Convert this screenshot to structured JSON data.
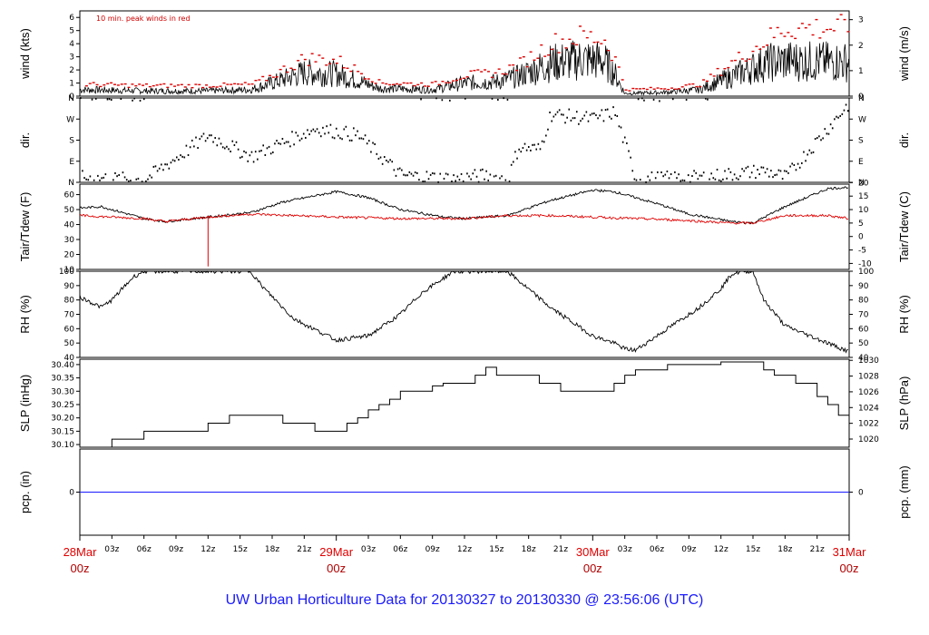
{
  "title": "UW Urban Horticulture Data for 20130327  to  20130330 @ 23:56:06  (UTC)",
  "note": "10 min. peak winds in red",
  "colors": {
    "main": "#000000",
    "peak": "#e00000",
    "dewpoint": "#e00000",
    "precip": "#1a1aff",
    "title": "#1a1aff",
    "date": "#e00000"
  },
  "x_axis": {
    "hour_ticks": [
      "03z",
      "06z",
      "09z",
      "12z",
      "15z",
      "18z",
      "21z",
      "03z",
      "06z",
      "09z",
      "12z",
      "15z",
      "18z",
      "21z",
      "03z",
      "06z",
      "09z",
      "12z",
      "15z",
      "18z",
      "21z"
    ],
    "date_labels": [
      {
        "day": "28Mar",
        "hour": "00z"
      },
      {
        "day": "29Mar",
        "hour": "00z"
      },
      {
        "day": "30Mar",
        "hour": "00z"
      },
      {
        "day": "31Mar",
        "hour": "00z"
      }
    ]
  },
  "chart_data": [
    {
      "type": "line",
      "id": "wind",
      "ylabel_left": "wind (kts)",
      "ylabel_right": "wind (m/s)",
      "ylim": [
        0,
        6.5
      ],
      "left_ticks": [
        "0",
        "1",
        "2",
        "3",
        "4",
        "5",
        "6"
      ],
      "right_ticks": [
        "0",
        "1",
        "2",
        "3"
      ],
      "x_unit": "hours since 28Mar 00z",
      "x_range": [
        0,
        72
      ],
      "series": [
        {
          "name": "wind",
          "color": "#000000",
          "profile": [
            [
              0,
              0.5
            ],
            [
              6,
              0.4
            ],
            [
              12,
              0.4
            ],
            [
              16,
              0.5
            ],
            [
              18,
              1.0
            ],
            [
              21,
              1.8
            ],
            [
              24,
              1.7
            ],
            [
              26,
              1.2
            ],
            [
              28,
              0.6
            ],
            [
              33,
              0.5
            ],
            [
              36,
              1.0
            ],
            [
              39,
              1.1
            ],
            [
              41,
              1.5
            ],
            [
              44,
              2.5
            ],
            [
              47,
              2.8
            ],
            [
              49,
              2.7
            ],
            [
              50,
              1.8
            ],
            [
              51,
              0.2
            ],
            [
              55,
              0.3
            ],
            [
              58,
              0.5
            ],
            [
              61,
              1.5
            ],
            [
              64,
              2.5
            ],
            [
              66,
              2.7
            ],
            [
              72,
              2.6
            ]
          ]
        },
        {
          "name": "10 min. peak winds",
          "color": "#e00000",
          "profile": [
            [
              0,
              0.9
            ],
            [
              6,
              0.8
            ],
            [
              12,
              0.8
            ],
            [
              16,
              0.9
            ],
            [
              18,
              1.6
            ],
            [
              21,
              2.9
            ],
            [
              24,
              2.7
            ],
            [
              26,
              1.9
            ],
            [
              28,
              1.0
            ],
            [
              33,
              0.9
            ],
            [
              36,
              1.6
            ],
            [
              39,
              1.8
            ],
            [
              41,
              2.4
            ],
            [
              44,
              4.0
            ],
            [
              47,
              4.6
            ],
            [
              49,
              4.3
            ],
            [
              50,
              2.8
            ],
            [
              51,
              0.5
            ],
            [
              55,
              0.6
            ],
            [
              58,
              0.9
            ],
            [
              61,
              2.6
            ],
            [
              64,
              4.2
            ],
            [
              66,
              5.2
            ],
            [
              72,
              5.2
            ]
          ]
        }
      ]
    },
    {
      "type": "scatter",
      "id": "dir",
      "ylabel_left": "dir.",
      "ylabel_right": "dir.",
      "ylim": [
        0,
        360
      ],
      "left_ticks": [
        "N",
        "E",
        "S",
        "W",
        "N"
      ],
      "right_ticks": [
        "N",
        "E",
        "S",
        "W",
        "N"
      ],
      "x_range": [
        0,
        72
      ],
      "series": [
        {
          "name": "direction",
          "color": "#000000",
          "profile": [
            [
              0,
              20
            ],
            [
              6,
              10
            ],
            [
              12,
              200
            ],
            [
              16,
              110
            ],
            [
              20,
              190
            ],
            [
              22,
              230
            ],
            [
              26,
              200
            ],
            [
              30,
              30
            ],
            [
              35,
              15
            ],
            [
              38,
              30
            ],
            [
              40,
              10
            ],
            [
              41,
              150
            ],
            [
              43,
              140
            ],
            [
              44,
              290
            ],
            [
              48,
              270
            ],
            [
              50,
              300
            ],
            [
              52,
              15
            ],
            [
              58,
              20
            ],
            [
              64,
              50
            ],
            [
              66,
              20
            ],
            [
              72,
              340
            ]
          ]
        }
      ]
    },
    {
      "type": "line",
      "id": "temp",
      "ylabel_left": "Tair/Tdew (F)",
      "ylabel_right": "Tair/Tdew (C)",
      "ylim": [
        10,
        67
      ],
      "left_ticks": [
        "10",
        "20",
        "30",
        "40",
        "50",
        "60"
      ],
      "right_ticks": [
        "-10",
        "-5",
        "0",
        "5",
        "10",
        "15",
        "20"
      ],
      "x_range": [
        0,
        72
      ],
      "series": [
        {
          "name": "Tair",
          "color": "#000000",
          "profile": [
            [
              0,
              51
            ],
            [
              2,
              52
            ],
            [
              6,
              44
            ],
            [
              8,
              42
            ],
            [
              12,
              45
            ],
            [
              16,
              48
            ],
            [
              19,
              55
            ],
            [
              24,
              62
            ],
            [
              27,
              58
            ],
            [
              30,
              50
            ],
            [
              34,
              45
            ],
            [
              36,
              44
            ],
            [
              40,
              46
            ],
            [
              44,
              56
            ],
            [
              48,
              63
            ],
            [
              50,
              62
            ],
            [
              54,
              54
            ],
            [
              57,
              47
            ],
            [
              61,
              42
            ],
            [
              63,
              41
            ],
            [
              66,
              52
            ],
            [
              70,
              64
            ],
            [
              72,
              65
            ]
          ]
        },
        {
          "name": "Tdew",
          "color": "#e00000",
          "profile": [
            [
              0,
              46
            ],
            [
              6,
              44
            ],
            [
              8,
              42
            ],
            [
              12,
              45
            ],
            [
              16,
              47
            ],
            [
              20,
              46
            ],
            [
              24,
              45
            ],
            [
              30,
              44
            ],
            [
              36,
              44
            ],
            [
              40,
              46
            ],
            [
              44,
              46
            ],
            [
              48,
              45
            ],
            [
              52,
              44
            ],
            [
              56,
              43
            ],
            [
              61,
              41
            ],
            [
              63,
              41
            ],
            [
              66,
              46
            ],
            [
              70,
              46
            ],
            [
              72,
              44
            ]
          ]
        }
      ]
    },
    {
      "type": "line",
      "id": "rh",
      "ylabel_left": "RH (%)",
      "ylabel_right": "RH (%)",
      "ylim": [
        40,
        100
      ],
      "left_ticks": [
        "40",
        "50",
        "60",
        "70",
        "80",
        "90",
        "100"
      ],
      "right_ticks": [
        "40",
        "50",
        "60",
        "70",
        "80",
        "90",
        "100"
      ],
      "x_range": [
        0,
        72
      ],
      "series": [
        {
          "name": "RH",
          "color": "#000000",
          "profile": [
            [
              0,
              82
            ],
            [
              2,
              75
            ],
            [
              3,
              80
            ],
            [
              5,
              96
            ],
            [
              6,
              100
            ],
            [
              16,
              100
            ],
            [
              17,
              90
            ],
            [
              20,
              67
            ],
            [
              24,
              52
            ],
            [
              27,
              55
            ],
            [
              30,
              70
            ],
            [
              32,
              85
            ],
            [
              34,
              95
            ],
            [
              35,
              100
            ],
            [
              40,
              100
            ],
            [
              44,
              75
            ],
            [
              48,
              55
            ],
            [
              50,
              50
            ],
            [
              51,
              46
            ],
            [
              52,
              45
            ],
            [
              54,
              55
            ],
            [
              56,
              65
            ],
            [
              58,
              75
            ],
            [
              60,
              88
            ],
            [
              61,
              98
            ],
            [
              62,
              100
            ],
            [
              63,
              100
            ],
            [
              64,
              80
            ],
            [
              66,
              62
            ],
            [
              70,
              50
            ],
            [
              72,
              44
            ]
          ]
        }
      ]
    },
    {
      "type": "line",
      "id": "slp",
      "ylabel_left": "SLP (inHg)",
      "ylabel_right": "SLP (hPa)",
      "ylim": [
        30.09,
        30.42
      ],
      "left_ticks": [
        "30.10",
        "30.15",
        "30.20",
        "30.25",
        "30.30",
        "30.35",
        "30.40"
      ],
      "right_ticks": [
        "1020",
        "1022",
        "1024",
        "1026",
        "1028",
        "1030"
      ],
      "x_range": [
        0,
        72
      ],
      "series": [
        {
          "name": "SLP",
          "color": "#000000",
          "steps": [
            [
              0,
              30.09
            ],
            [
              1,
              30.09
            ],
            [
              2,
              30.09
            ],
            [
              3,
              30.12
            ],
            [
              6,
              30.15
            ],
            [
              12,
              30.18
            ],
            [
              14,
              30.21
            ],
            [
              19,
              30.18
            ],
            [
              22,
              30.15
            ],
            [
              25,
              30.18
            ],
            [
              26,
              30.2
            ],
            [
              27,
              30.23
            ],
            [
              28,
              30.25
            ],
            [
              29,
              30.27
            ],
            [
              30,
              30.3
            ],
            [
              33,
              30.32
            ],
            [
              34,
              30.33
            ],
            [
              37,
              30.36
            ],
            [
              38,
              30.39
            ],
            [
              39,
              30.36
            ],
            [
              43,
              30.33
            ],
            [
              45,
              30.3
            ],
            [
              50,
              30.33
            ],
            [
              51,
              30.36
            ],
            [
              52,
              30.38
            ],
            [
              55,
              30.4
            ],
            [
              60,
              30.41
            ],
            [
              64,
              30.38
            ],
            [
              65,
              30.36
            ],
            [
              67,
              30.33
            ],
            [
              69,
              30.28
            ],
            [
              70,
              30.25
            ],
            [
              71,
              30.21
            ],
            [
              72,
              30.21
            ]
          ]
        }
      ]
    },
    {
      "type": "line",
      "id": "pcp",
      "ylabel_left": "pcp. (in)",
      "ylabel_right": "pcp. (mm)",
      "ylim": [
        -1,
        1
      ],
      "left_ticks": [
        "0"
      ],
      "right_ticks": [
        "0"
      ],
      "x_range": [
        0,
        72
      ],
      "series": [
        {
          "name": "precipitation",
          "color": "#1a1aff",
          "x": [
            0,
            72
          ],
          "values": [
            0,
            0
          ]
        }
      ]
    }
  ]
}
